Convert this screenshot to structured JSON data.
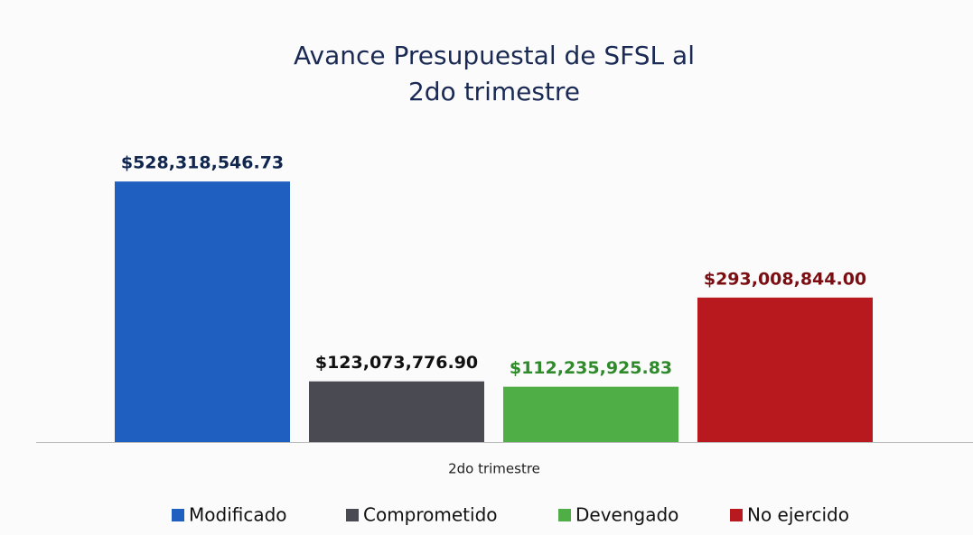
{
  "chart_data": {
    "type": "bar",
    "title": "Avance Presupuestal de SFSL al 2do trimestre",
    "categories": [
      "2do trimestre"
    ],
    "series": [
      {
        "name": "Modificado",
        "color": "#1f5fbf",
        "label_color": "#10264f",
        "values": [
          528318546.73
        ],
        "value_labels": [
          "$528,318,546.73"
        ]
      },
      {
        "name": "Comprometido",
        "color": "#4a4a52",
        "label_color": "#111111",
        "values": [
          123073776.9
        ],
        "value_labels": [
          "$123,073,776.90"
        ]
      },
      {
        "name": "Devengado",
        "color": "#4fae45",
        "label_color": "#2e8a2a",
        "values": [
          112235925.83
        ],
        "value_labels": [
          "$112,235,925.83"
        ]
      },
      {
        "name": "No ejercido",
        "color": "#b8191e",
        "label_color": "#7a0e12",
        "values": [
          293008844.0
        ],
        "value_labels": [
          "$293,008,844.00"
        ]
      }
    ],
    "ylim": [
      0,
      600000000
    ],
    "legend": "bottom"
  }
}
